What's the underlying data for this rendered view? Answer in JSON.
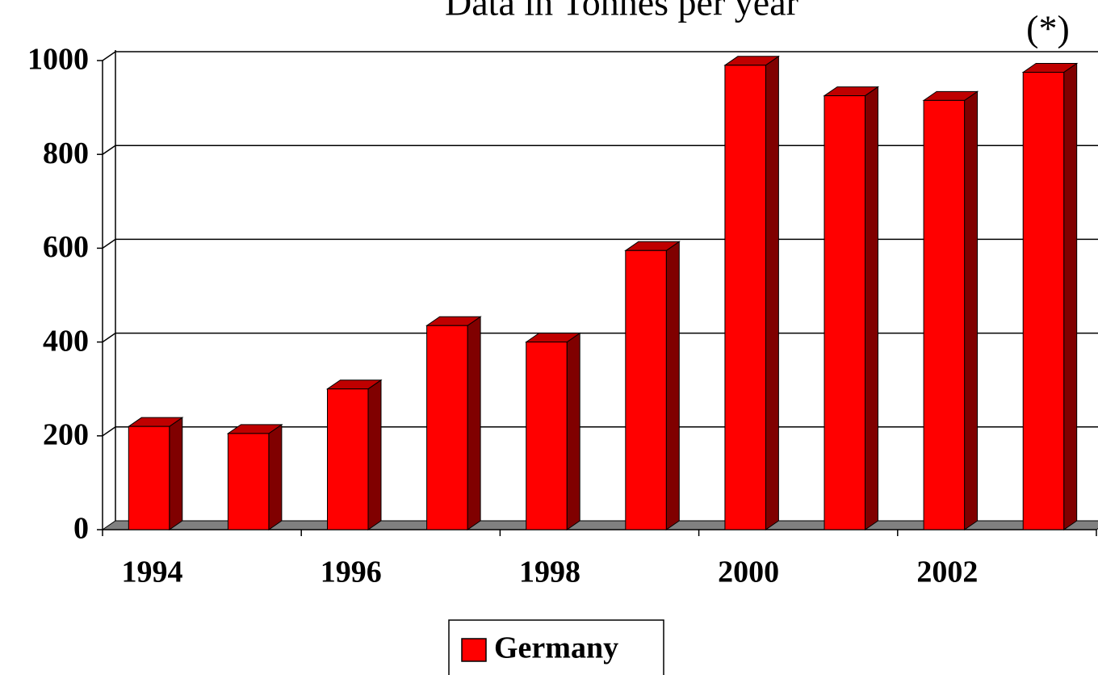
{
  "chart_data": {
    "type": "bar3d",
    "title": "Data in Tonnes per year",
    "annotation": "(*)",
    "categories": [
      "1994",
      null,
      "1996",
      null,
      "1998",
      null,
      "2000",
      null,
      "2002",
      null
    ],
    "series": [
      {
        "name": "Germany",
        "color": "#ff0000",
        "values": [
          220,
          205,
          300,
          435,
          400,
          595,
          990,
          925,
          915,
          975
        ]
      }
    ],
    "ylim": [
      0,
      1000
    ],
    "yticks": [
      0,
      200,
      400,
      600,
      800,
      1000
    ],
    "grid": true,
    "legend": "bottom"
  }
}
